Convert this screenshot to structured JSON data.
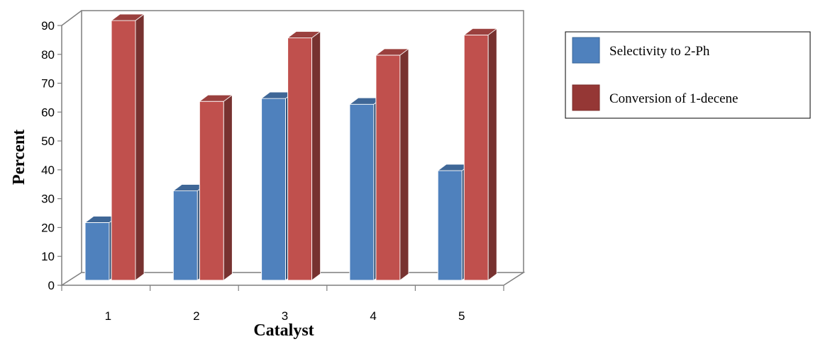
{
  "chart_data": {
    "type": "bar",
    "style": "3d-clustered-column",
    "title": "",
    "xlabel": "Catalyst",
    "ylabel": "Percent",
    "categories": [
      "1",
      "2",
      "3",
      "4",
      "5"
    ],
    "ylim": [
      0,
      90
    ],
    "yticks": [
      0,
      10,
      20,
      30,
      40,
      50,
      60,
      70,
      80,
      90
    ],
    "grid": false,
    "legend_position": "right",
    "series": [
      {
        "name": "Selectivity to 2-Ph",
        "color": "#4f81bd",
        "values": [
          20,
          31,
          63,
          61,
          38
        ]
      },
      {
        "name": "Conversion of 1-decene",
        "color": "#c0504d",
        "values": [
          90,
          62,
          84,
          78,
          85
        ]
      }
    ]
  }
}
